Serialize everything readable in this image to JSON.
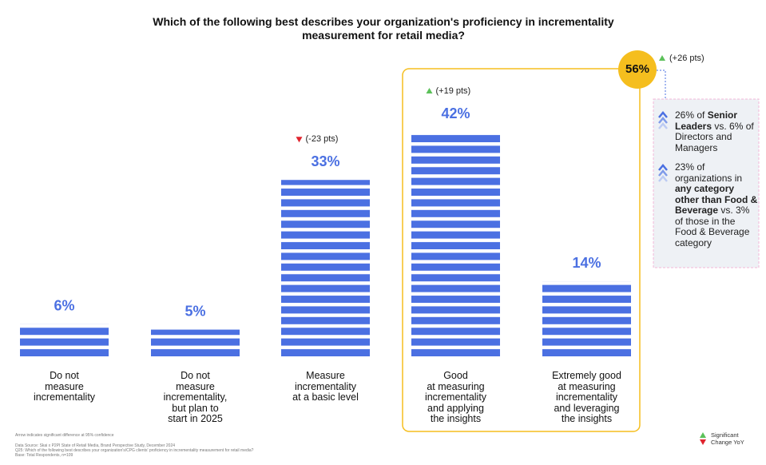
{
  "chart_data": {
    "type": "bar",
    "title": "Which of the following best describes your organization's proficiency in incrementality\nmeasurement for retail media?",
    "categories": [
      "Do not\nmeasure\nincrementality",
      "Do not\nmeasure\nincrementality,\nbut plan to\nstart in 2025",
      "Measure\nincrementality\nat a basic level",
      "Good\nat measuring\nincrementality\nand applying\nthe insights",
      "Extremely good\nat measuring\nincrementality\nand leveraging\nthe insights"
    ],
    "values": [
      6,
      5,
      33,
      42,
      14
    ],
    "value_labels": [
      "6%",
      "5%",
      "33%",
      "42%",
      "14%"
    ],
    "change_labels": [
      null,
      null,
      "(-23 pts)",
      "(+19 pts)",
      null
    ],
    "color": "#4b70e2",
    "combined": {
      "value": 56,
      "value_label": "56%",
      "change_label": "(+26 pts)"
    },
    "insights": [
      [
        {
          "text": "26% of "
        },
        {
          "text": "Senior Leaders",
          "bold": true
        },
        {
          "text": " vs. 6% of Directors and Managers"
        }
      ],
      [
        {
          "text": "23% of organizations in "
        },
        {
          "text": "any category other than Food & Beverage",
          "bold": true
        },
        {
          "text": " vs. 3% of those in the Food & Beverage category"
        }
      ]
    ],
    "legend": [
      "Significant",
      "Change YoY"
    ],
    "footnotes": [
      "Arrow indicates significant difference at 95% confidence",
      "Data Source: Skai x P2PI State of Retail Media, Brand Perspective Study, December 2024",
      "Q25: Which of the following best describes your organization's/CPG clients' proficiency in incrementality measurement for retail media?",
      "Base: Total Respondents, n=109"
    ]
  }
}
